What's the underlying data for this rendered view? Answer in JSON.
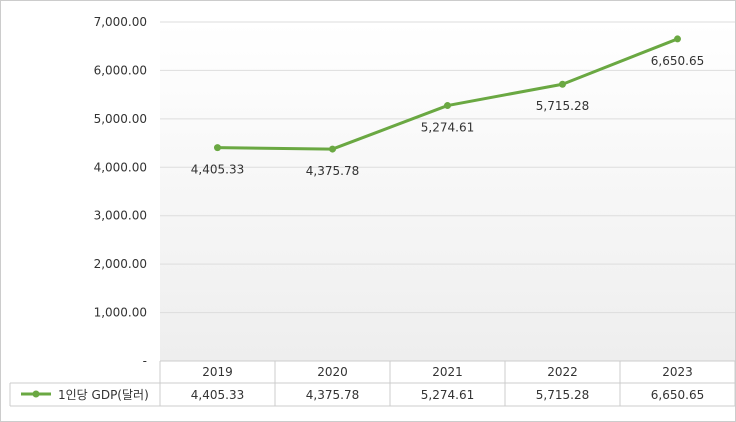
{
  "chart_data": {
    "type": "line",
    "categories": [
      "2019",
      "2020",
      "2021",
      "2022",
      "2023"
    ],
    "series": [
      {
        "name": "1인당 GDP(달러)",
        "values": [
          4405.33,
          4375.78,
          5274.61,
          5715.28,
          6650.65
        ],
        "labels": [
          "4,405.33",
          "4,375.78",
          "5,274.61",
          "5,715.28",
          "6,650.65"
        ],
        "color": "#6aa842"
      }
    ],
    "ylim": [
      0,
      7000
    ],
    "yticks": [
      {
        "value": 0,
        "label": "-"
      },
      {
        "value": 1000,
        "label": "1,000.00"
      },
      {
        "value": 2000,
        "label": "2,000.00"
      },
      {
        "value": 3000,
        "label": "3,000.00"
      },
      {
        "value": 4000,
        "label": "4,000.00"
      },
      {
        "value": 5000,
        "label": "5,000.00"
      },
      {
        "value": 6000,
        "label": "6,000.00"
      },
      {
        "value": 7000,
        "label": "7,000.00"
      }
    ],
    "grid": true,
    "legend": "data-table-left",
    "colors": {
      "grid": "#dddddd",
      "border": "#cccccc",
      "text": "#333333",
      "bg_gradient_bottom": "#eeeeee"
    }
  }
}
